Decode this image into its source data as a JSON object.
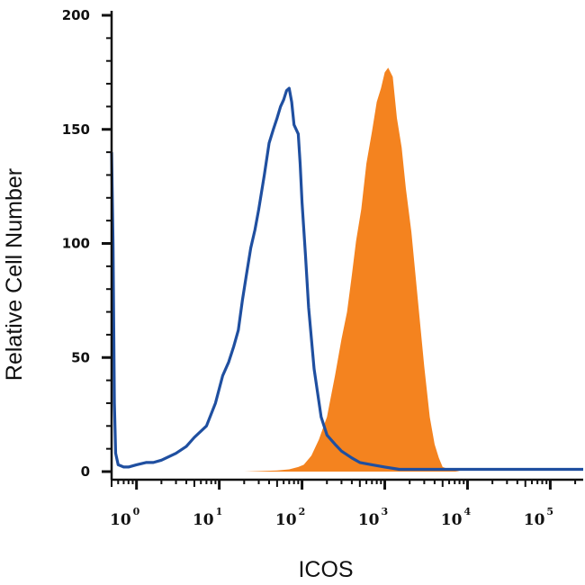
{
  "chart_data": {
    "type": "area",
    "xlabel": "ICOS",
    "ylabel": "Relative Cell Number",
    "x_scale": "log",
    "xlim": [
      0.5,
      250000
    ],
    "ylim": [
      0,
      200
    ],
    "x_ticks": [
      {
        "base": "10",
        "exp": "0",
        "value": 1
      },
      {
        "base": "10",
        "exp": "1",
        "value": 10
      },
      {
        "base": "10",
        "exp": "2",
        "value": 100
      },
      {
        "base": "10",
        "exp": "3",
        "value": 1000
      },
      {
        "base": "10",
        "exp": "4",
        "value": 10000
      },
      {
        "base": "10",
        "exp": "5",
        "value": 100000
      }
    ],
    "y_ticks": [
      0,
      50,
      100,
      150,
      200
    ],
    "grid": false,
    "series": [
      {
        "style": "filled",
        "color": "#F4831F",
        "x": [
          0.5,
          20,
          50,
          70,
          90,
          105,
          130,
          160,
          200,
          250,
          300,
          350,
          400,
          450,
          520,
          600,
          700,
          800,
          900,
          1000,
          1100,
          1250,
          1400,
          1600,
          1800,
          2100,
          2500,
          3000,
          3500,
          4000,
          4500,
          5000,
          6000,
          8000,
          250000
        ],
        "y": [
          0,
          0,
          0.5,
          1,
          2,
          3,
          7,
          14,
          24,
          42,
          58,
          70,
          86,
          101,
          115,
          135,
          149,
          162,
          168,
          175,
          177,
          173,
          155,
          142,
          124,
          105,
          76,
          46,
          24,
          12,
          6,
          2,
          1,
          0,
          0
        ]
      },
      {
        "style": "line",
        "color": "#1F4FA0",
        "x": [
          0.5,
          0.52,
          0.54,
          0.56,
          0.6,
          0.7,
          0.8,
          1,
          1.3,
          1.6,
          2,
          3,
          4,
          5,
          7,
          9,
          11,
          13,
          15,
          17,
          19,
          21,
          24,
          27,
          30,
          35,
          40,
          45,
          50,
          55,
          60,
          65,
          70,
          75,
          80,
          90,
          95,
          100,
          110,
          120,
          140,
          170,
          200,
          250,
          300,
          400,
          500,
          700,
          1000,
          1500,
          2000,
          3000,
          10000,
          250000
        ],
        "y": [
          140,
          100,
          30,
          8,
          3,
          2,
          2,
          3,
          4,
          4,
          5,
          8,
          11,
          15,
          20,
          30,
          42,
          48,
          55,
          62,
          75,
          85,
          98,
          106,
          115,
          130,
          144,
          150,
          155,
          160,
          163,
          167,
          168,
          162,
          152,
          148,
          135,
          118,
          95,
          72,
          45,
          24,
          16,
          12,
          9,
          6,
          4,
          3,
          2,
          1,
          1,
          1,
          1,
          1
        ]
      }
    ]
  }
}
